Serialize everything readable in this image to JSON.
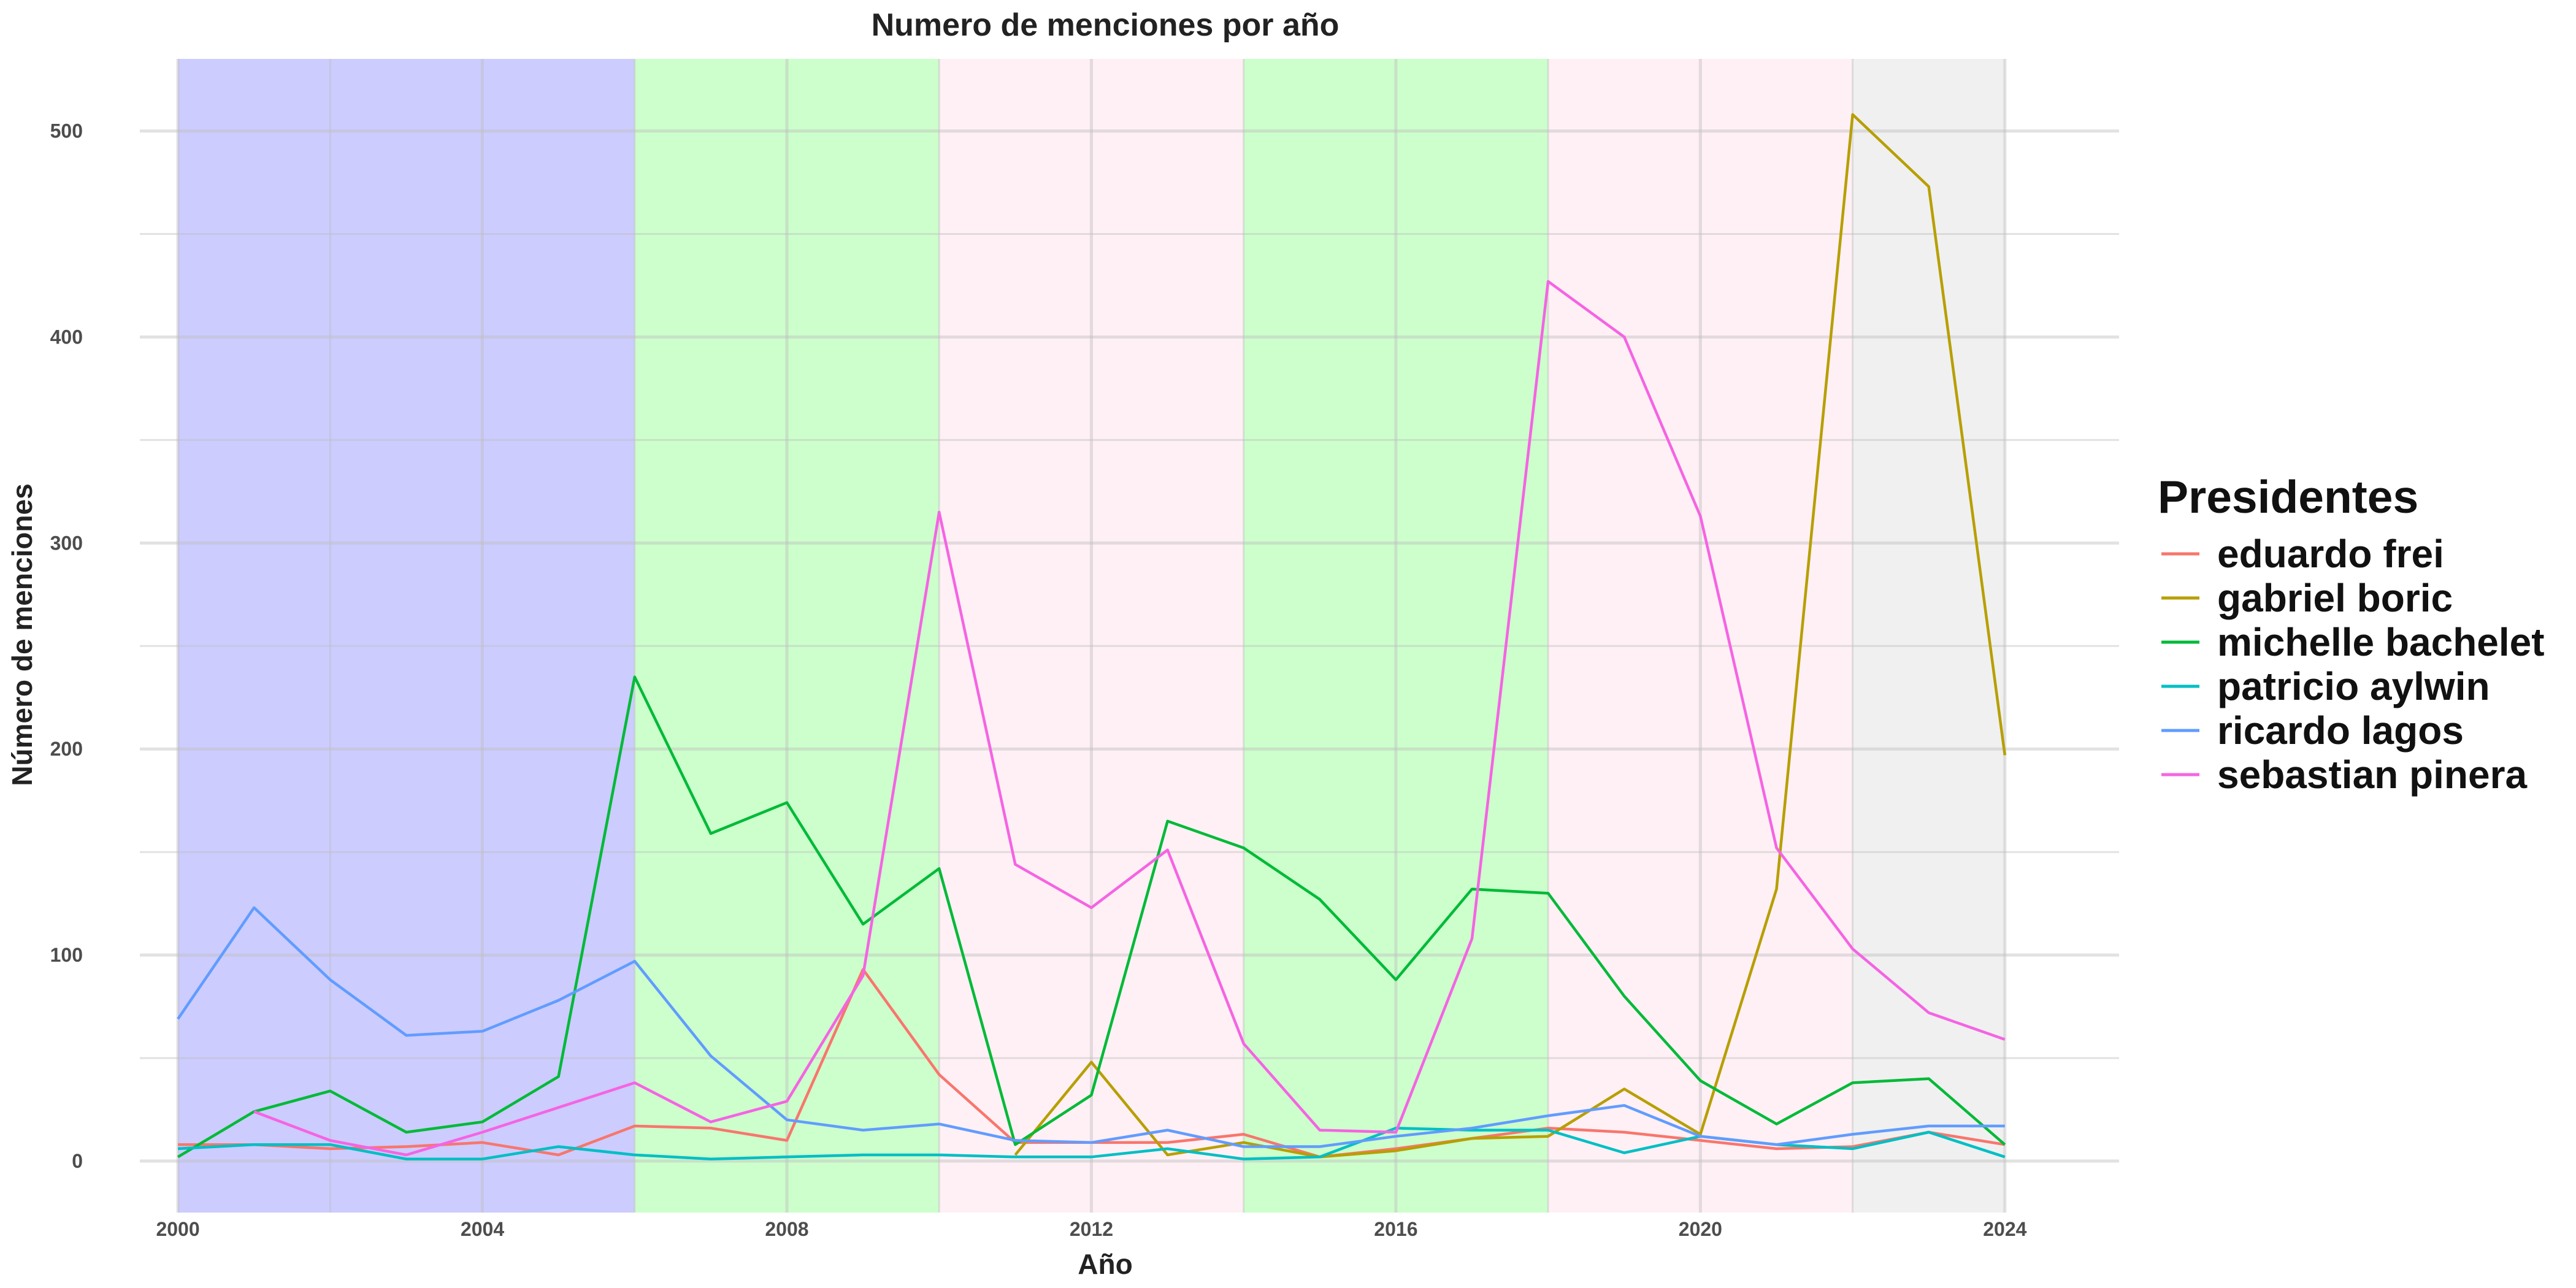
{
  "chart_data": {
    "type": "line",
    "title": "Numero de menciones por año",
    "xlabel": "Año",
    "ylabel": "Número de menciones",
    "xlim": [
      1999.5,
      2025.5
    ],
    "ylim": [
      -25,
      535
    ],
    "x_ticks": [
      2000,
      2004,
      2008,
      2012,
      2016,
      2020,
      2024
    ],
    "y_ticks": [
      0,
      100,
      200,
      300,
      400,
      500
    ],
    "grid": true,
    "legend_position": "right",
    "legend_title": "Presidentes",
    "background_bands": [
      {
        "from": 2000,
        "to": 2006,
        "color": "#ccccff"
      },
      {
        "from": 2006,
        "to": 2010,
        "color": "#ccffcc"
      },
      {
        "from": 2010,
        "to": 2014,
        "color": "#fff0f5"
      },
      {
        "from": 2014,
        "to": 2018,
        "color": "#ccffcc"
      },
      {
        "from": 2018,
        "to": 2022,
        "color": "#fff0f5"
      },
      {
        "from": 2022,
        "to": 2024,
        "color": "#f0f0f0"
      }
    ],
    "series": [
      {
        "name": "eduardo frei",
        "color": "#F8766D",
        "x": [
          2000,
          2001,
          2002,
          2003,
          2004,
          2005,
          2006,
          2007,
          2008,
          2009,
          2010,
          2011,
          2012,
          2013,
          2014,
          2015,
          2016,
          2017,
          2018,
          2019,
          2020,
          2021,
          2022,
          2023,
          2024
        ],
        "y": [
          8,
          8,
          6,
          7,
          9,
          3,
          17,
          16,
          10,
          93,
          42,
          9,
          9,
          9,
          13,
          2,
          6,
          11,
          16,
          14,
          10,
          6,
          7,
          14,
          8
        ]
      },
      {
        "name": "gabriel boric",
        "color": "#B79F00",
        "x": [
          2011,
          2012,
          2013,
          2014,
          2015,
          2016,
          2017,
          2018,
          2019,
          2020,
          2021,
          2022,
          2023,
          2024
        ],
        "y": [
          3,
          48,
          3,
          9,
          2,
          5,
          11,
          12,
          35,
          13,
          132,
          508,
          473,
          197
        ]
      },
      {
        "name": "michelle bachelet",
        "color": "#00BA38",
        "x": [
          2000,
          2001,
          2002,
          2003,
          2004,
          2005,
          2006,
          2007,
          2008,
          2009,
          2010,
          2011,
          2012,
          2013,
          2014,
          2015,
          2016,
          2017,
          2018,
          2019,
          2020,
          2021,
          2022,
          2023,
          2024
        ],
        "y": [
          2,
          24,
          34,
          14,
          19,
          41,
          235,
          159,
          174,
          115,
          142,
          8,
          32,
          165,
          152,
          127,
          88,
          132,
          130,
          80,
          39,
          18,
          38,
          40,
          8
        ]
      },
      {
        "name": "patricio aylwin",
        "color": "#00BFC4",
        "x": [
          2000,
          2001,
          2002,
          2003,
          2004,
          2005,
          2006,
          2007,
          2008,
          2009,
          2010,
          2011,
          2012,
          2013,
          2014,
          2015,
          2016,
          2017,
          2018,
          2019,
          2020,
          2021,
          2022,
          2023,
          2024
        ],
        "y": [
          6,
          8,
          8,
          1,
          1,
          7,
          3,
          1,
          2,
          3,
          3,
          2,
          2,
          6,
          1,
          2,
          16,
          15,
          15,
          4,
          12,
          8,
          6,
          14,
          2
        ]
      },
      {
        "name": "ricardo lagos",
        "color": "#619CFF",
        "x": [
          2000,
          2001,
          2002,
          2003,
          2004,
          2005,
          2006,
          2007,
          2008,
          2009,
          2010,
          2011,
          2012,
          2013,
          2014,
          2015,
          2016,
          2017,
          2018,
          2019,
          2020,
          2021,
          2022,
          2023,
          2024
        ],
        "y": [
          69,
          123,
          88,
          61,
          63,
          78,
          97,
          51,
          20,
          15,
          18,
          10,
          9,
          15,
          7,
          7,
          12,
          16,
          22,
          27,
          12,
          8,
          13,
          17,
          17
        ]
      },
      {
        "name": "sebastian pinera",
        "color": "#F564E3",
        "x": [
          2001,
          2002,
          2003,
          2004,
          2005,
          2006,
          2007,
          2008,
          2009,
          2010,
          2011,
          2012,
          2013,
          2014,
          2015,
          2016,
          2017,
          2018,
          2019,
          2020,
          2021,
          2022,
          2023,
          2024
        ],
        "y": [
          24,
          10,
          3,
          14,
          26,
          38,
          19,
          29,
          90,
          315,
          144,
          123,
          151,
          57,
          15,
          14,
          108,
          427,
          400,
          313,
          152,
          103,
          72,
          59
        ]
      }
    ]
  }
}
